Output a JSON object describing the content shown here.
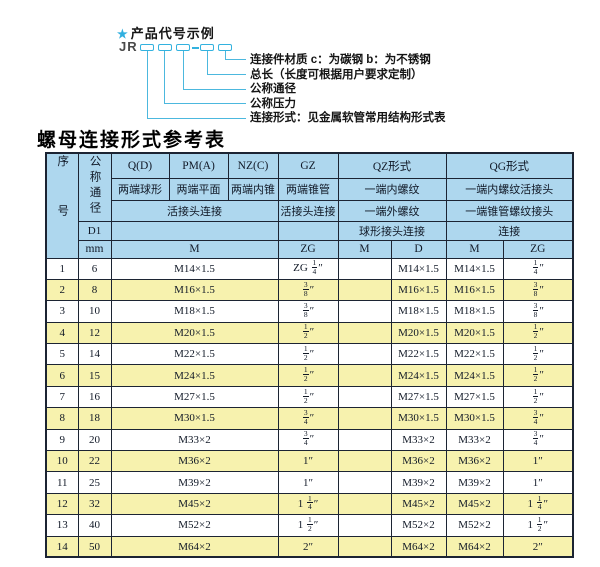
{
  "diagram": {
    "star": "★",
    "title": "产品代号示例",
    "prefix": "JR",
    "labels": [
      "连接件材质 c：为碳钢 b：为不锈钢",
      "总长（长度可根据用户要求定制）",
      "公称通径",
      "公称压力",
      "连接形式：见金属软管常用结构形式表"
    ]
  },
  "table": {
    "title": "螺母连接形式参考表",
    "header": {
      "seq": "序号",
      "diameter": "公称通径",
      "d1": "D1",
      "mm": "mm",
      "groups": [
        "Q(D)",
        "PM(A)",
        "NZ(C)",
        "GZ",
        "QZ形式",
        "QG形式"
      ],
      "ends": [
        "两端球形",
        "两端平面",
        "两端内锥",
        "两端锥管",
        "一端内螺纹",
        "一端内螺纹活接头"
      ],
      "conn": [
        "活接头连接",
        "活接头连接",
        "一端外螺纹",
        "一端锥管螺纹接头"
      ],
      "conn2": [
        "球形接头连接",
        "连接"
      ],
      "units": [
        "M",
        "ZG",
        "M",
        "D",
        "M",
        "ZG"
      ]
    },
    "rows": [
      [
        "1",
        "6",
        "M14×1.5",
        "ZG 1/4″",
        "",
        "M14×1.5",
        "M14×1.5",
        "1/4″"
      ],
      [
        "2",
        "8",
        "M16×1.5",
        "3/8″",
        "",
        "M16×1.5",
        "M16×1.5",
        "3/8″"
      ],
      [
        "3",
        "10",
        "M18×1.5",
        "3/8″",
        "",
        "M18×1.5",
        "M18×1.5",
        "3/8″"
      ],
      [
        "4",
        "12",
        "M20×1.5",
        "1/2″",
        "",
        "M20×1.5",
        "M20×1.5",
        "1/2″"
      ],
      [
        "5",
        "14",
        "M22×1.5",
        "1/2″",
        "",
        "M22×1.5",
        "M22×1.5",
        "1/2″"
      ],
      [
        "6",
        "15",
        "M24×1.5",
        "1/2″",
        "",
        "M24×1.5",
        "M24×1.5",
        "1/2″"
      ],
      [
        "7",
        "16",
        "M27×1.5",
        "1/2″",
        "",
        "M27×1.5",
        "M27×1.5",
        "1/2″"
      ],
      [
        "8",
        "18",
        "M30×1.5",
        "3/4″",
        "",
        "M30×1.5",
        "M30×1.5",
        "3/4″"
      ],
      [
        "9",
        "20",
        "M33×2",
        "3/4″",
        "",
        "M33×2",
        "M33×2",
        "3/4″"
      ],
      [
        "10",
        "22",
        "M36×2",
        "1″",
        "",
        "M36×2",
        "M36×2",
        "1″"
      ],
      [
        "11",
        "25",
        "M39×2",
        "1″",
        "",
        "M39×2",
        "M39×2",
        "1″"
      ],
      [
        "12",
        "32",
        "M45×2",
        "1 1/4″",
        "",
        "M45×2",
        "M45×2",
        "1 1/4″"
      ],
      [
        "13",
        "40",
        "M52×2",
        "1 1/2″",
        "",
        "M52×2",
        "M52×2",
        "1 1/2″"
      ],
      [
        "14",
        "50",
        "M64×2",
        "2″",
        "",
        "M64×2",
        "M64×2",
        "2″"
      ]
    ]
  },
  "colors": {
    "accent_cyan": "#33b2df",
    "header_blue": "#aed7ee",
    "row_yellow": "#f7f2ae",
    "border": "#1c2433"
  }
}
